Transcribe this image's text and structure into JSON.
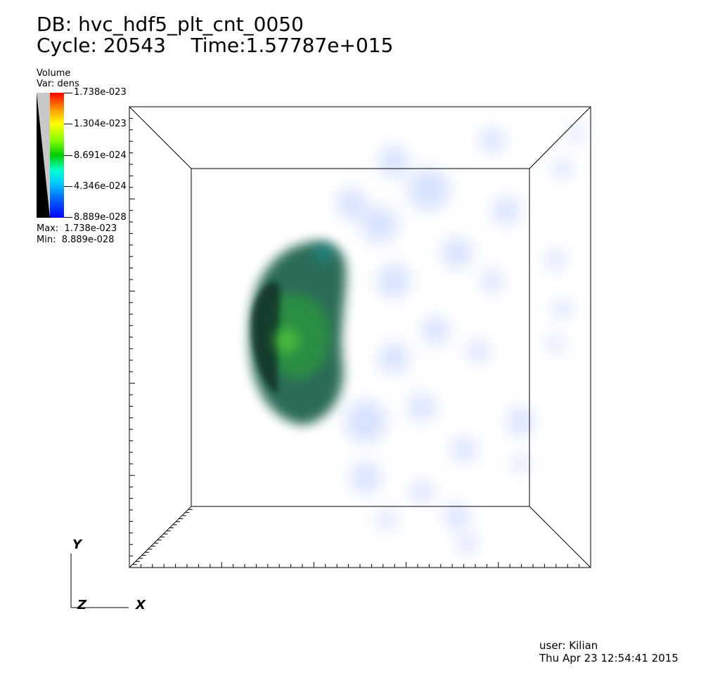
{
  "header": {
    "db": "DB: hvc_hdf5_plt_cnt_0050",
    "cycle": "Cycle: 20543",
    "time": "Time:1.57787e+015"
  },
  "legend": {
    "title": "Volume",
    "var": "Var: dens",
    "ticks": [
      "1.738e-023",
      "1.304e-023",
      "8.691e-024",
      "4.346e-024",
      "8.889e-028"
    ],
    "max": "Max:  1.738e-023",
    "min": "Min:  8.889e-028"
  },
  "axes": {
    "y": "Y",
    "z": "Z",
    "x": "X"
  },
  "footer": {
    "user": "user: Kilian",
    "date": "Thu Apr 23 12:54:41 2015"
  },
  "colors": {
    "background": "#ffffff",
    "cloud_core": "#1f7a35",
    "cloud_diffuse": "#5b8cff"
  }
}
